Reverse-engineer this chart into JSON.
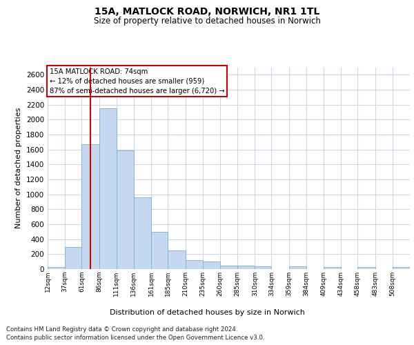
{
  "title_line1": "15A, MATLOCK ROAD, NORWICH, NR1 1TL",
  "title_line2": "Size of property relative to detached houses in Norwich",
  "xlabel": "Distribution of detached houses by size in Norwich",
  "ylabel": "Number of detached properties",
  "footer_line1": "Contains HM Land Registry data © Crown copyright and database right 2024.",
  "footer_line2": "Contains public sector information licensed under the Open Government Licence v3.0.",
  "annotation_line1": "15A MATLOCK ROAD: 74sqm",
  "annotation_line2": "← 12% of detached houses are smaller (959)",
  "annotation_line3": "87% of semi-detached houses are larger (6,720) →",
  "property_size": 74,
  "bar_color": "#c5d8f0",
  "bar_edge_color": "#7aaed6",
  "vline_color": "#cc0000",
  "annotation_box_edgecolor": "#cc0000",
  "annotation_box_facecolor": "#ffffff",
  "grid_color": "#c8d4e8",
  "background_color": "#ffffff",
  "categories": [
    "12sqm",
    "37sqm",
    "61sqm",
    "86sqm",
    "111sqm",
    "136sqm",
    "161sqm",
    "185sqm",
    "210sqm",
    "235sqm",
    "260sqm",
    "285sqm",
    "310sqm",
    "334sqm",
    "359sqm",
    "384sqm",
    "409sqm",
    "434sqm",
    "458sqm",
    "483sqm",
    "508sqm"
  ],
  "bin_left": [
    12,
    37,
    61,
    86,
    111,
    136,
    161,
    185,
    210,
    235,
    260,
    285,
    310,
    334,
    359,
    384,
    409,
    434,
    458,
    483,
    508
  ],
  "bin_right": [
    37,
    61,
    86,
    111,
    136,
    161,
    185,
    210,
    235,
    260,
    285,
    310,
    334,
    359,
    384,
    409,
    434,
    458,
    483,
    508,
    533
  ],
  "values": [
    25,
    300,
    1670,
    2150,
    1590,
    960,
    500,
    250,
    120,
    100,
    50,
    50,
    35,
    0,
    35,
    0,
    25,
    0,
    25,
    0,
    25
  ],
  "ylim": [
    0,
    2700
  ],
  "yticks": [
    0,
    200,
    400,
    600,
    800,
    1000,
    1200,
    1400,
    1600,
    1800,
    2000,
    2200,
    2400,
    2600
  ]
}
